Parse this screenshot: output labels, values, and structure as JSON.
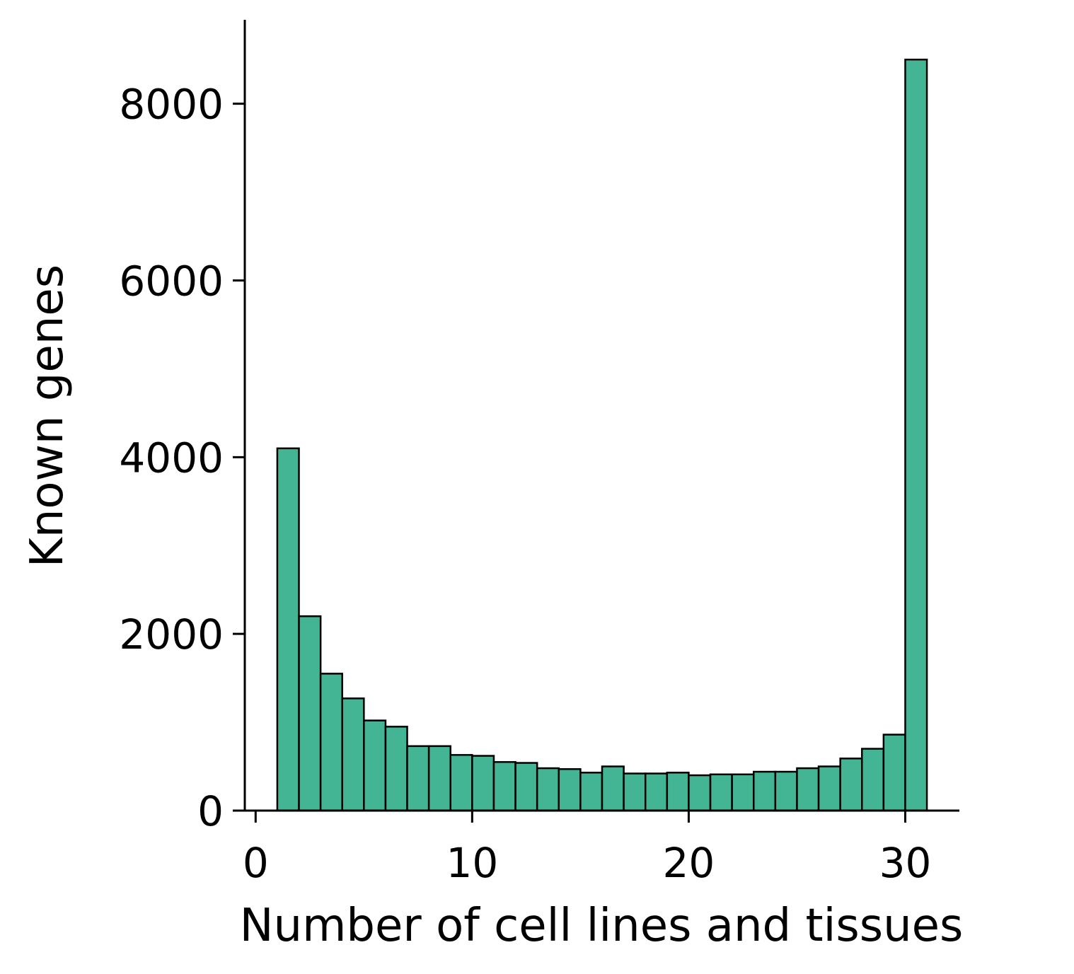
{
  "chart_data": {
    "type": "bar",
    "xlabel": "Number of cell lines and tissues",
    "ylabel": "Known genes",
    "xlim": [
      -0.5,
      32.5
    ],
    "ylim": [
      0,
      8950
    ],
    "xticks": [
      0,
      10,
      20,
      30
    ],
    "yticks": [
      0,
      2000,
      4000,
      6000,
      8000
    ],
    "bin_edges": [
      1,
      2,
      3,
      4,
      5,
      6,
      7,
      8,
      9,
      10,
      11,
      12,
      13,
      14,
      15,
      16,
      17,
      18,
      19,
      20,
      21,
      22,
      23,
      24,
      25,
      26,
      27,
      28,
      29,
      30,
      31
    ],
    "values": [
      4100,
      2200,
      1550,
      1270,
      1020,
      950,
      730,
      730,
      630,
      620,
      550,
      540,
      480,
      470,
      430,
      500,
      420,
      420,
      430,
      400,
      410,
      410,
      440,
      440,
      480,
      500,
      590,
      700,
      860,
      8500
    ],
    "bar_color": "#43b594",
    "edge_color": "#000000",
    "grid": false
  }
}
